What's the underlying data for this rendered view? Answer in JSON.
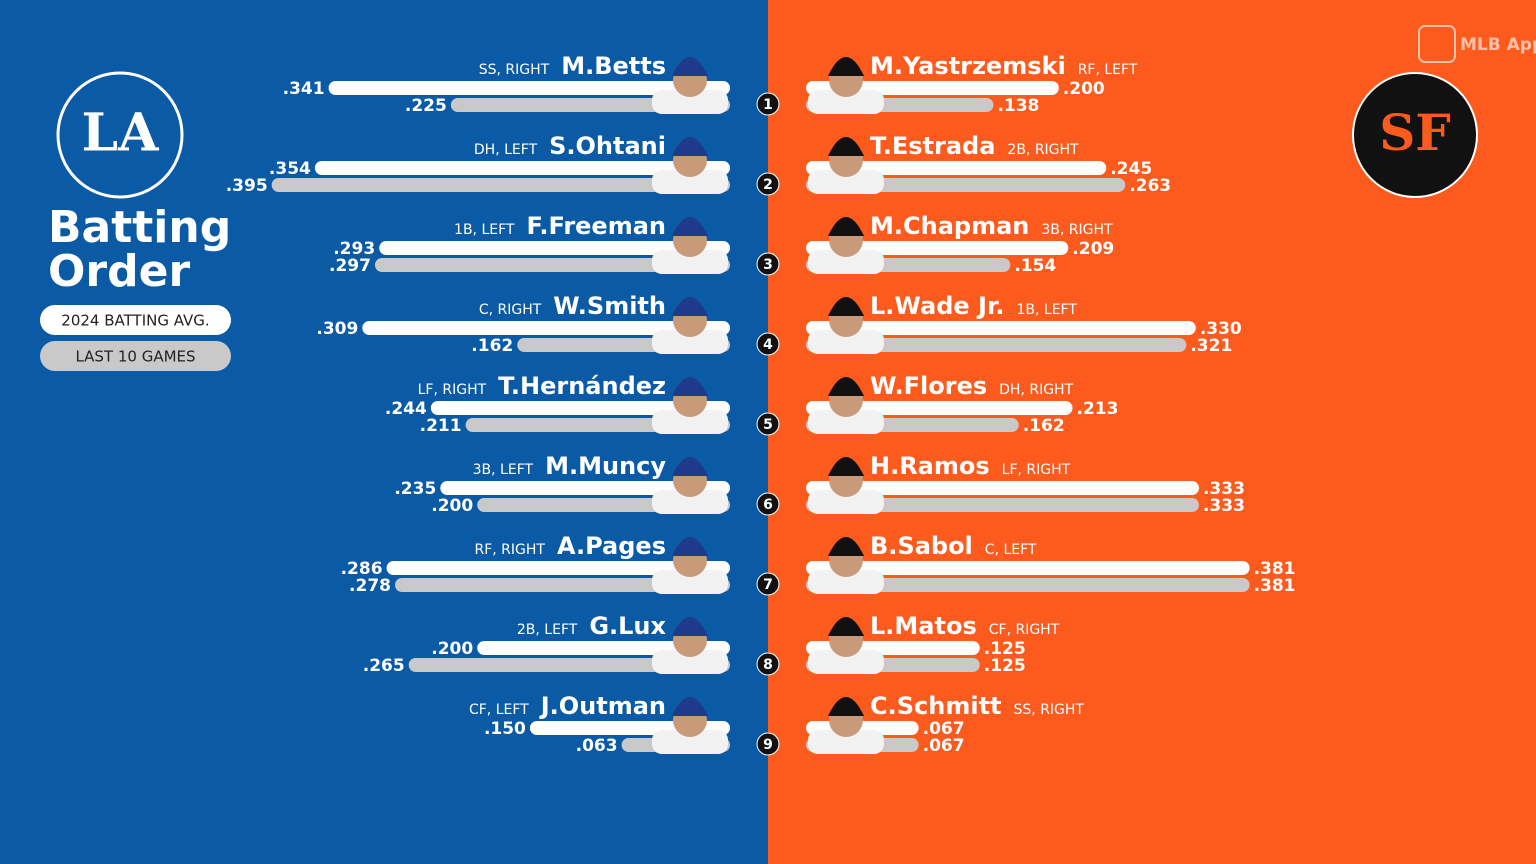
{
  "chart_data": {
    "type": "butterfly",
    "title": "Batting Order",
    "brand": "MLB App",
    "categories": [
      "1",
      "2",
      "3",
      "4",
      "5",
      "6",
      "7",
      "8",
      "9"
    ],
    "legend": [
      {
        "name": "2024 BATTING AVG.",
        "color": "#ffffff"
      },
      {
        "name": "LAST 10 GAMES",
        "color": "#c9c9c9"
      }
    ],
    "teams": [
      {
        "logo": "LA",
        "background": "#0a5aa5",
        "players": [
          "M.Betts",
          "S.Ohtani",
          "F.Freeman",
          "W.Smith",
          "T.Hernández",
          "M.Muncy",
          "A.Pages",
          "G.Lux",
          "J.Outman"
        ],
        "positions": [
          "SS, RIGHT",
          "DH, LEFT",
          "1B, LEFT",
          "C, RIGHT",
          "LF, RIGHT",
          "3B, LEFT",
          "RF, RIGHT",
          "2B, LEFT",
          "CF, LEFT"
        ],
        "series": [
          {
            "values": [
              0.341,
              0.354,
              0.293,
              0.309,
              0.244,
              0.235,
              0.286,
              0.2,
              0.15
            ],
            "value_labels": [
              ".341",
              ".354",
              ".293",
              ".309",
              ".244",
              ".235",
              ".286",
              ".200",
              ".150"
            ]
          },
          {
            "values": [
              0.225,
              0.395,
              0.297,
              0.162,
              0.211,
              0.2,
              0.278,
              0.265,
              0.063
            ],
            "value_labels": [
              ".225",
              ".395",
              ".297",
              ".162",
              ".211",
              ".200",
              ".278",
              ".265",
              ".063"
            ]
          }
        ]
      },
      {
        "logo": "SF",
        "background": "#fd5a1e",
        "players": [
          "M.Yastrzemski",
          "T.Estrada",
          "M.Chapman",
          "L.Wade Jr.",
          "W.Flores",
          "H.Ramos",
          "B.Sabol",
          "L.Matos",
          "C.Schmitt"
        ],
        "positions": [
          "RF, LEFT",
          "2B, RIGHT",
          "3B, RIGHT",
          "1B, LEFT",
          "DH, RIGHT",
          "LF, RIGHT",
          "C, LEFT",
          "CF, RIGHT",
          "SS, RIGHT"
        ],
        "series": [
          {
            "values": [
              0.2,
              0.245,
              0.209,
              0.33,
              0.213,
              0.333,
              0.381,
              0.125,
              0.067
            ],
            "value_labels": [
              ".200",
              ".245",
              ".209",
              ".330",
              ".213",
              ".333",
              ".381",
              ".125",
              ".067"
            ]
          },
          {
            "values": [
              0.138,
              0.263,
              0.154,
              0.321,
              0.162,
              0.333,
              0.381,
              0.125,
              0.067
            ],
            "value_labels": [
              ".138",
              ".263",
              ".154",
              ".321",
              ".162",
              ".333",
              ".381",
              ".125",
              ".067"
            ]
          }
        ]
      }
    ]
  }
}
